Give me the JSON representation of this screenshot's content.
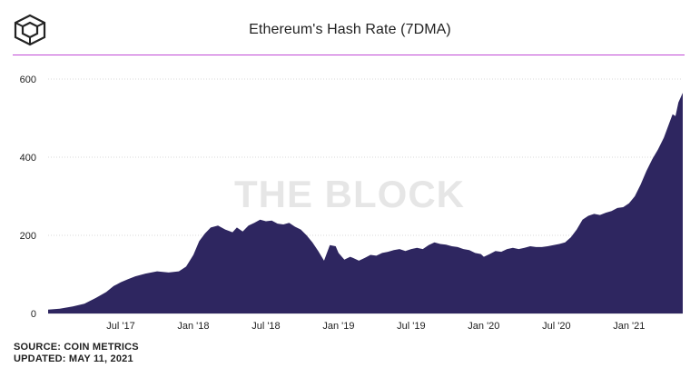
{
  "header": {
    "title": "Ethereum's Hash Rate (7DMA)"
  },
  "footer": {
    "source": "SOURCE: COIN METRICS",
    "updated": "UPDATED: MAY 11, 2021"
  },
  "watermark": "THE BLOCK",
  "colors": {
    "area": "#2e2660",
    "accent": "#c04ad6",
    "grid": "#d9d9d9",
    "text": "#222222",
    "watermark": "#e6e6e6"
  },
  "chart_data": {
    "type": "area",
    "title": "Ethereum's Hash Rate (7DMA)",
    "xlabel": "",
    "ylabel": "",
    "grid": true,
    "legend": "none",
    "ylim": [
      0,
      600
    ],
    "xlim": [
      2017.0,
      2021.37
    ],
    "y_ticks": [
      {
        "value": 0,
        "label": "0"
      },
      {
        "value": 200,
        "label": "200"
      },
      {
        "value": 400,
        "label": "400"
      },
      {
        "value": 600,
        "label": "600"
      }
    ],
    "x_ticks": [
      {
        "value": 2017.5,
        "label": "Jul '17"
      },
      {
        "value": 2018.0,
        "label": "Jan '18"
      },
      {
        "value": 2018.5,
        "label": "Jul '18"
      },
      {
        "value": 2019.0,
        "label": "Jan '19"
      },
      {
        "value": 2019.5,
        "label": "Jul '19"
      },
      {
        "value": 2020.0,
        "label": "Jan '20"
      },
      {
        "value": 2020.5,
        "label": "Jul '20"
      },
      {
        "value": 2021.0,
        "label": "Jan '21"
      }
    ],
    "series": [
      {
        "x": [
          2017.0,
          2017.08,
          2017.17,
          2017.25,
          2017.33,
          2017.4,
          2017.45,
          2017.5,
          2017.55,
          2017.6,
          2017.67,
          2017.75,
          2017.83,
          2017.9,
          2017.95,
          2018.0,
          2018.04,
          2018.08,
          2018.12,
          2018.17,
          2018.22,
          2018.27,
          2018.3,
          2018.34,
          2018.38,
          2018.42,
          2018.46,
          2018.5,
          2018.54,
          2018.58,
          2018.62,
          2018.66,
          2018.7,
          2018.74,
          2018.78,
          2018.82,
          2018.86,
          2018.9,
          2018.94,
          2018.98,
          2019.0,
          2019.04,
          2019.08,
          2019.1,
          2019.14,
          2019.18,
          2019.22,
          2019.26,
          2019.3,
          2019.34,
          2019.38,
          2019.42,
          2019.46,
          2019.5,
          2019.54,
          2019.58,
          2019.62,
          2019.66,
          2019.7,
          2019.74,
          2019.78,
          2019.82,
          2019.86,
          2019.9,
          2019.94,
          2019.98,
          2020.0,
          2020.04,
          2020.08,
          2020.12,
          2020.16,
          2020.2,
          2020.24,
          2020.28,
          2020.32,
          2020.36,
          2020.4,
          2020.44,
          2020.48,
          2020.52,
          2020.56,
          2020.6,
          2020.64,
          2020.68,
          2020.72,
          2020.76,
          2020.8,
          2020.84,
          2020.88,
          2020.92,
          2020.96,
          2021.0,
          2021.04,
          2021.08,
          2021.12,
          2021.16,
          2021.2,
          2021.24,
          2021.28,
          2021.3,
          2021.32,
          2021.34,
          2021.37
        ],
        "y": [
          10,
          12,
          18,
          25,
          40,
          55,
          70,
          80,
          88,
          95,
          102,
          108,
          105,
          108,
          120,
          150,
          185,
          205,
          220,
          225,
          215,
          208,
          220,
          210,
          225,
          232,
          240,
          236,
          238,
          230,
          228,
          232,
          222,
          215,
          200,
          182,
          160,
          135,
          175,
          172,
          155,
          138,
          145,
          142,
          135,
          142,
          150,
          148,
          155,
          158,
          162,
          165,
          160,
          165,
          168,
          165,
          175,
          182,
          178,
          176,
          172,
          170,
          165,
          162,
          155,
          152,
          145,
          152,
          160,
          158,
          165,
          168,
          165,
          168,
          172,
          170,
          170,
          172,
          175,
          178,
          182,
          195,
          215,
          240,
          250,
          255,
          252,
          258,
          262,
          270,
          272,
          282,
          300,
          330,
          365,
          395,
          420,
          450,
          490,
          510,
          505,
          540,
          565
        ]
      }
    ]
  }
}
